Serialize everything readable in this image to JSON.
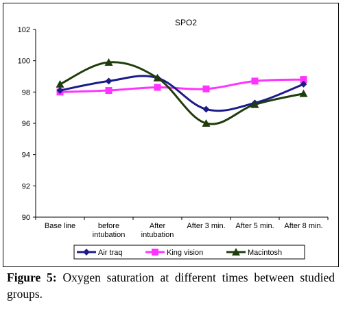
{
  "chart_data": {
    "type": "line",
    "title": "SPO2",
    "xlabel": "",
    "ylabel": "",
    "categories": [
      "Base line",
      "before intubation",
      "After intubation",
      "After 3 min.",
      "After 5 min.",
      "After 8 min."
    ],
    "ylim": [
      90,
      102
    ],
    "yticks": [
      "90",
      "92",
      "94",
      "96",
      "98",
      "100",
      "102"
    ],
    "grid": false,
    "legend_position": "bottom",
    "series": [
      {
        "name": "Air traq",
        "values": [
          98.1,
          98.7,
          98.9,
          96.9,
          97.3,
          98.5
        ],
        "color": "#1b1b8a",
        "marker": "diamond"
      },
      {
        "name": "King vision",
        "values": [
          98.0,
          98.1,
          98.3,
          98.2,
          98.7,
          98.8
        ],
        "color": "#ff33ff",
        "marker": "square"
      },
      {
        "name": "Macintosh",
        "values": [
          98.5,
          99.9,
          98.9,
          96.0,
          97.2,
          97.9
        ],
        "color": "#1f3d0c",
        "marker": "triangle"
      }
    ]
  },
  "caption": {
    "label": "Figure 5:",
    "text": " Oxygen saturation at different times between studied groups."
  }
}
